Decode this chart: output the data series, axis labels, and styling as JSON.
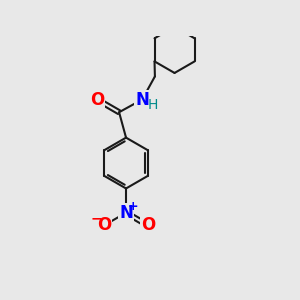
{
  "background_color": "#e8e8e8",
  "bond_color": "#1a1a1a",
  "atom_colors": {
    "O": "#ff0000",
    "N_amide": "#0000ff",
    "N_nitro": "#0000ff",
    "H": "#008b8b",
    "C": "#1a1a1a"
  },
  "figsize": [
    3.0,
    3.0
  ],
  "dpi": 100,
  "lw": 1.5
}
